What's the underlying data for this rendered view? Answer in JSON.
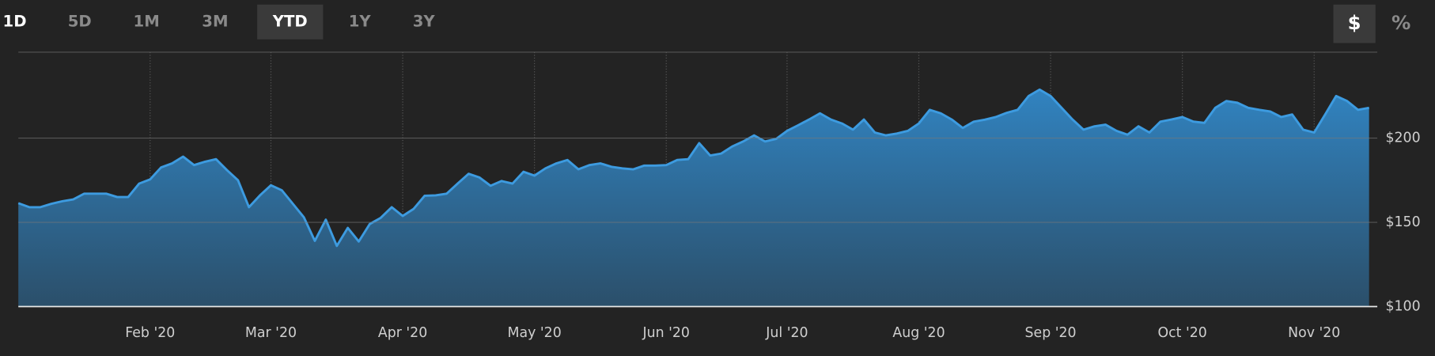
{
  "range_buttons": [
    "1D",
    "5D",
    "1M",
    "3M",
    "YTD",
    "1Y",
    "3Y"
  ],
  "unit_buttons": [
    "$",
    "%"
  ],
  "chart_data": {
    "type": "area",
    "color": "#3d9be0",
    "categories": [
      null,
      null,
      null,
      null,
      null,
      null,
      null,
      null,
      null,
      null,
      null,
      null,
      "Feb '20",
      null,
      null,
      null,
      null,
      null,
      null,
      null,
      null,
      null,
      null,
      "Mar '20",
      null,
      null,
      null,
      null,
      null,
      null,
      null,
      null,
      null,
      null,
      null,
      "Apr '20",
      null,
      null,
      null,
      null,
      null,
      null,
      null,
      null,
      null,
      null,
      null,
      "May '20",
      null,
      null,
      null,
      null,
      null,
      null,
      null,
      null,
      null,
      null,
      null,
      "Jun '20",
      null,
      null,
      null,
      null,
      null,
      null,
      null,
      null,
      null,
      null,
      "Jul '20",
      null,
      null,
      null,
      null,
      null,
      null,
      null,
      null,
      null,
      null,
      null,
      "Aug '20",
      null,
      null,
      null,
      null,
      null,
      null,
      null,
      null,
      null,
      null,
      null,
      "Sep '20",
      null,
      null,
      null,
      null,
      null,
      null,
      null,
      null,
      null,
      null,
      null,
      "Oct '20",
      null,
      null,
      null,
      null,
      null,
      null,
      null,
      null,
      null,
      null,
      null,
      "Nov '20",
      null,
      null,
      null,
      null,
      null
    ],
    "values": [
      161.4,
      159,
      159,
      161,
      162.5,
      163.6,
      167,
      167,
      167,
      165,
      165,
      173,
      175.5,
      182.6,
      185,
      189,
      184,
      186,
      187.5,
      181,
      175,
      159,
      166,
      172,
      169,
      161,
      153,
      139,
      151.6,
      136,
      146.7,
      138.6,
      149,
      152.7,
      159,
      153.8,
      158,
      165.8,
      166,
      167,
      173,
      178.8,
      176.6,
      171.7,
      174.5,
      173,
      180,
      177.7,
      182,
      185,
      187,
      181.5,
      184,
      185,
      183,
      182,
      181.5,
      183.7,
      183.7,
      184,
      187,
      187.5,
      197,
      189.7,
      190.8,
      195,
      198,
      201.6,
      198,
      199.5,
      204.3,
      207.6,
      211,
      214.7,
      211,
      208.7,
      205,
      211,
      203.3,
      201.6,
      202.7,
      204.3,
      208.7,
      216.8,
      214.7,
      211,
      206,
      209.8,
      210.9,
      212.5,
      215,
      216.8,
      225,
      228.8,
      225,
      218,
      211,
      205,
      207,
      208,
      204.3,
      202,
      207,
      203.3,
      209.8,
      211,
      212.5,
      209.8,
      209,
      218,
      222,
      221,
      218,
      216.8,
      215.8,
      212.5,
      214,
      205,
      203.3,
      214,
      225,
      222,
      216.8,
      218
    ],
    "ylim": [
      100,
      251
    ],
    "yticks": [
      {
        "value": 100,
        "label": "$100"
      },
      {
        "value": 150,
        "label": "$150"
      },
      {
        "value": 200,
        "label": "$200"
      }
    ],
    "grid": true
  }
}
